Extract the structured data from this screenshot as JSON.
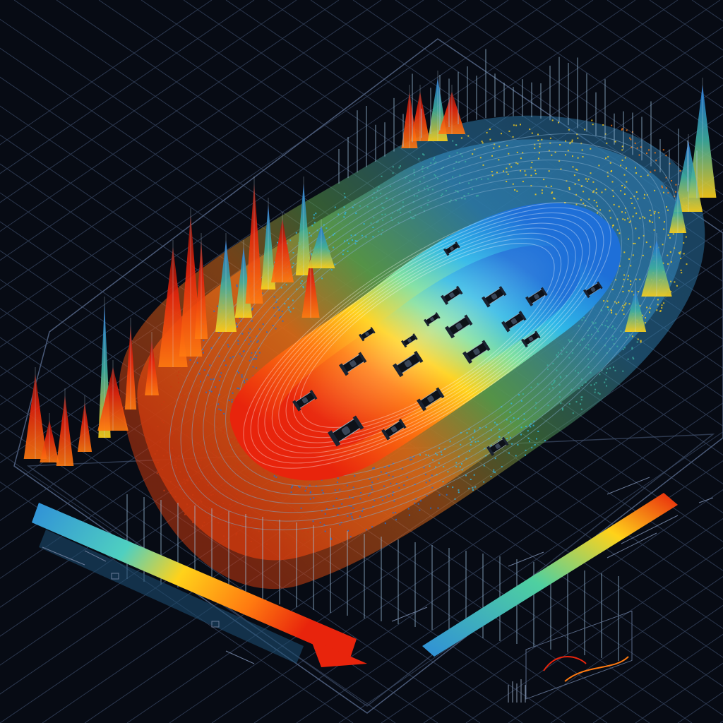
{
  "scene": {
    "subject": "racetrack-heatmap-illustration",
    "colors": {
      "background": "#070b14",
      "grid_line": "#33405a",
      "heat_cold": "#1e6fd8",
      "heat_cool": "#2fb8e8",
      "heat_mid": "#7fe0a0",
      "heat_warm": "#ffd21a",
      "heat_hot": "#ff7a10",
      "heat_max": "#e8240c",
      "stand_line": "#7fa9c9",
      "car_body": "#0d1118"
    },
    "icons": [
      "left-scale-arrow-icon",
      "race-car-icon",
      "mini-chart-icon"
    ]
  }
}
